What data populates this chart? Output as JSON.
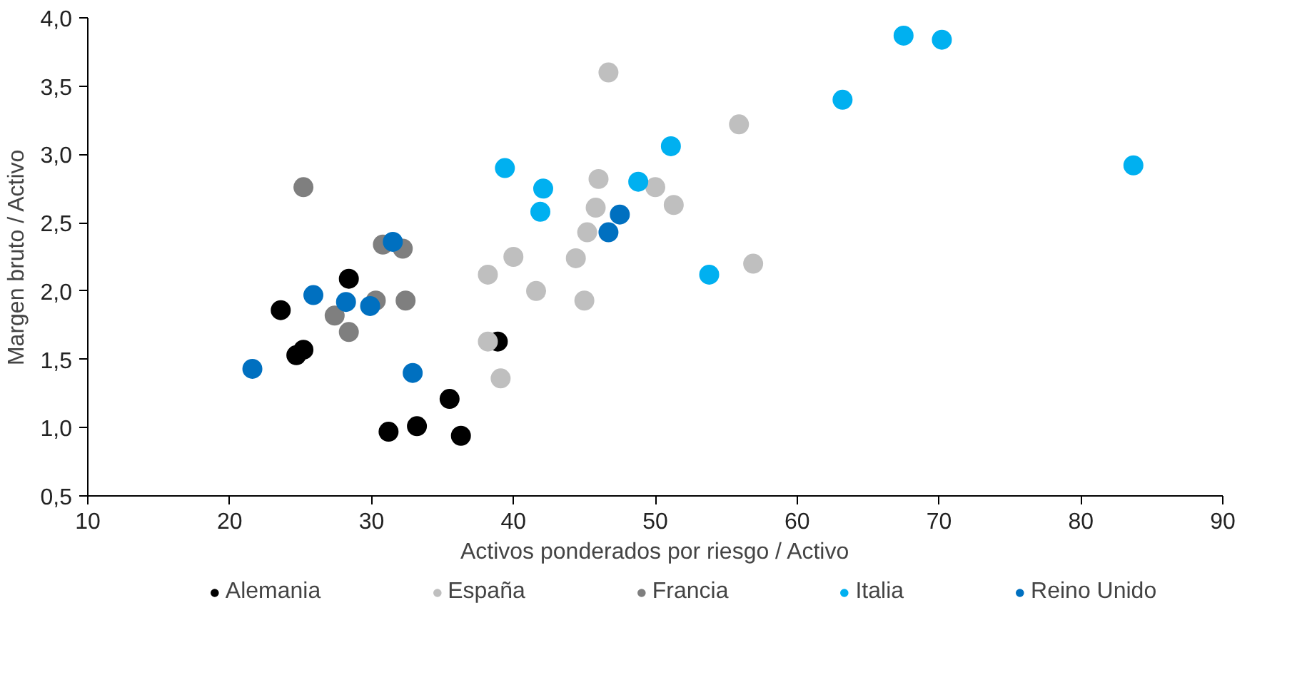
{
  "chart_data": {
    "type": "scatter",
    "xlabel": "Activos ponderados por riesgo / Activo",
    "ylabel": "Margen bruto / Activo",
    "xlim": [
      10,
      90
    ],
    "ylim": [
      0.5,
      4.0
    ],
    "xticks": [
      10,
      20,
      30,
      40,
      50,
      60,
      70,
      80,
      90
    ],
    "yticks": [
      {
        "value": 0.5,
        "label": "0,5"
      },
      {
        "value": 1.0,
        "label": "1,0"
      },
      {
        "value": 1.5,
        "label": "1,5"
      },
      {
        "value": 2.0,
        "label": "2,0"
      },
      {
        "value": 2.5,
        "label": "2,5"
      },
      {
        "value": 3.0,
        "label": "3,0"
      },
      {
        "value": 3.5,
        "label": "3,5"
      },
      {
        "value": 4.0,
        "label": "4,0"
      }
    ],
    "grid": false,
    "legend": "bottom",
    "marker": "circle",
    "series": [
      {
        "name": "Alemania",
        "color": "#000000",
        "x": [
          28.4,
          23.6,
          25.2,
          24.7,
          38.9,
          35.5,
          31.2,
          33.2,
          36.3
        ],
        "values": [
          2.09,
          1.86,
          1.57,
          1.53,
          1.63,
          1.21,
          0.97,
          1.01,
          0.94
        ]
      },
      {
        "name": "España",
        "color": "#bfbfbf",
        "x": [
          46.7,
          55.9,
          46.0,
          50.0,
          51.3,
          45.8,
          45.2,
          40.0,
          44.4,
          56.9,
          38.2,
          41.6,
          45.0,
          38.2,
          39.1
        ],
        "values": [
          3.6,
          3.22,
          2.82,
          2.76,
          2.63,
          2.61,
          2.43,
          2.25,
          2.24,
          2.2,
          2.12,
          2.0,
          1.93,
          1.63,
          1.36
        ]
      },
      {
        "name": "Francia",
        "color": "#7f7f7f",
        "x": [
          25.2,
          30.8,
          32.2,
          30.3,
          32.4,
          27.4,
          28.4
        ],
        "values": [
          2.76,
          2.34,
          2.31,
          1.93,
          1.93,
          1.82,
          1.7
        ]
      },
      {
        "name": "Italia",
        "color": "#00b0f0",
        "x": [
          39.4,
          42.1,
          41.9,
          48.8,
          51.1,
          53.8,
          63.2,
          67.5,
          70.2,
          83.7
        ],
        "values": [
          2.9,
          2.75,
          2.58,
          2.8,
          3.06,
          2.12,
          3.4,
          3.87,
          3.84,
          2.92
        ]
      },
      {
        "name": "Reino Unido",
        "color": "#0070c0",
        "x": [
          21.6,
          25.9,
          28.2,
          29.9,
          31.5,
          32.9,
          47.5,
          46.7
        ],
        "values": [
          1.43,
          1.97,
          1.92,
          1.89,
          2.36,
          1.4,
          2.56,
          2.43
        ]
      }
    ]
  }
}
